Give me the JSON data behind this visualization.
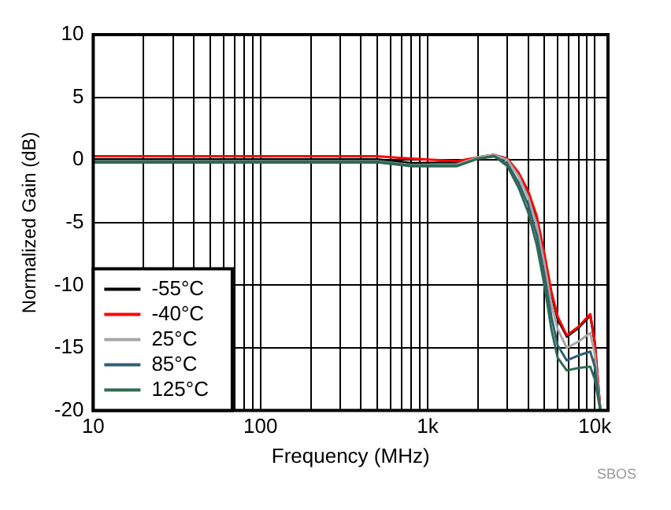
{
  "chart_data": {
    "type": "line",
    "xlabel": "Frequency (MHz)",
    "ylabel": "Normalized Gain (dB)",
    "annotations": [
      "SBOS"
    ],
    "x": [
      10,
      100,
      500,
      800,
      1500,
      2000,
      2500,
      3000,
      3500,
      4000,
      4500,
      5000,
      5500,
      6000,
      6800,
      8000,
      9400,
      10000,
      10800
    ],
    "series": [
      {
        "name": "-55°C",
        "color": "#000000",
        "values": [
          0.05,
          0.05,
          0.05,
          -0.25,
          -0.2,
          0.2,
          0.4,
          0.1,
          -1.1,
          -2.6,
          -4.7,
          -7.7,
          -10.7,
          -12.7,
          -14.1,
          -13.4,
          -12.4,
          -14.6,
          -20
        ]
      },
      {
        "name": "-40°C",
        "color": "#ff0000",
        "values": [
          0.3,
          0.3,
          0.3,
          0.1,
          -0.1,
          0.2,
          0.4,
          0.1,
          -1,
          -2.5,
          -4.5,
          -7.5,
          -10.5,
          -12.5,
          -14,
          -13.3,
          -12.3,
          -14.5,
          -20
        ]
      },
      {
        "name": "25°C",
        "color": "#a6a6a6",
        "values": [
          -0.1,
          -0.1,
          -0.1,
          -0.4,
          -0.35,
          0.2,
          0.4,
          0,
          -1.3,
          -3,
          -5.2,
          -8.3,
          -11.5,
          -13.5,
          -15,
          -14.5,
          -13.8,
          -15.5,
          -20
        ]
      },
      {
        "name": "85°C",
        "color": "#2f5f73",
        "values": [
          -0.2,
          -0.2,
          -0.2,
          -0.5,
          -0.5,
          0.1,
          0.3,
          -0.3,
          -1.8,
          -3.6,
          -6,
          -9.2,
          -12.5,
          -14.8,
          -16,
          -15.6,
          -15.3,
          -16.5,
          -20
        ]
      },
      {
        "name": "125°C",
        "color": "#2e6b4f",
        "values": [
          -0.15,
          -0.15,
          -0.15,
          -0.45,
          -0.45,
          0.1,
          0.3,
          -0.5,
          -2.2,
          -4.2,
          -6.8,
          -10,
          -13.5,
          -15.8,
          -16.8,
          -16.6,
          -16.5,
          -17.5,
          -20
        ]
      }
    ],
    "log": "x",
    "xlim": [
      10,
      12000
    ],
    "ylim": [
      -20,
      10
    ],
    "xticks": [
      10,
      {
        "value": 20,
        "label": null
      },
      {
        "value": 30,
        "label": null
      },
      {
        "value": 40,
        "label": null
      },
      {
        "value": 50,
        "label": null
      },
      {
        "value": 60,
        "label": null
      },
      {
        "value": 70,
        "label": null
      },
      {
        "value": 80,
        "label": null
      },
      {
        "value": 90,
        "label": null
      },
      100,
      {
        "value": 200,
        "label": null
      },
      {
        "value": 300,
        "label": null
      },
      {
        "value": 400,
        "label": null
      },
      {
        "value": 500,
        "label": null
      },
      {
        "value": 600,
        "label": null
      },
      {
        "value": 700,
        "label": null
      },
      {
        "value": 800,
        "label": null
      },
      {
        "value": 900,
        "label": null
      },
      {
        "value": 1000,
        "label": "1k"
      },
      {
        "value": 2000,
        "label": null
      },
      {
        "value": 3000,
        "label": null
      },
      {
        "value": 4000,
        "label": null
      },
      {
        "value": 5000,
        "label": null
      },
      {
        "value": 6000,
        "label": null
      },
      {
        "value": 7000,
        "label": null
      },
      {
        "value": 8000,
        "label": null
      },
      {
        "value": 9000,
        "label": null
      },
      {
        "value": 10000,
        "label": "10k"
      }
    ],
    "yticks": [
      -20,
      -15,
      -10,
      -5,
      0,
      5,
      10
    ],
    "grid": true,
    "legend": "bottom left",
    "line_style": "solid",
    "marker": "none"
  }
}
